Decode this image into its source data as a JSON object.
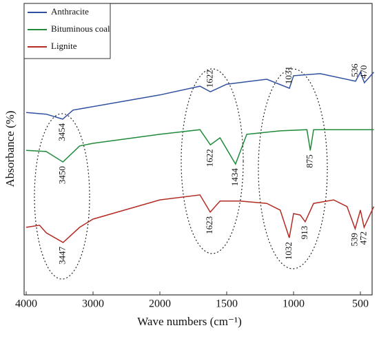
{
  "chart_data": {
    "type": "line",
    "xlabel": "Wave numbers (cm⁻¹)",
    "ylabel": "Absorbance (%)",
    "xlim": [
      4000,
      400
    ],
    "ylim": [
      0,
      100
    ],
    "xticks": [
      4000,
      3000,
      2000,
      1500,
      1000,
      500
    ],
    "legend": "upper left",
    "series": [
      {
        "name": "Anthracite",
        "color": "#2f4f9f",
        "x": [
          4000,
          3700,
          3454,
          3300,
          2000,
          1700,
          1622,
          1500,
          1200,
          1031,
          1000,
          800,
          536,
          500,
          470,
          400
        ],
        "values": [
          62.6,
          62,
          60.3,
          63.4,
          68.6,
          71.6,
          69.7,
          72.3,
          74,
          70.9,
          75.2,
          75.9,
          73.3,
          76.4,
          72.8,
          76.4
        ],
        "annotations": [
          "3454",
          "1622",
          "1031",
          "536",
          "470"
        ]
      },
      {
        "name": "Bituminous coal",
        "color": "#1f8a3a",
        "x": [
          4000,
          3700,
          3450,
          3200,
          3000,
          2000,
          1700,
          1622,
          1550,
          1434,
          1350,
          1100,
          900,
          875,
          850,
          700,
          400
        ],
        "values": [
          49.6,
          49.2,
          45.6,
          51.1,
          52,
          55.1,
          56.7,
          51.5,
          53.9,
          44.9,
          55.1,
          56.3,
          56.7,
          49.6,
          56.7,
          56.7,
          56.7
        ],
        "annotations": [
          "3450",
          "1622",
          "1434",
          "875"
        ]
      },
      {
        "name": "Lignite",
        "color": "#b22a22",
        "x": [
          4000,
          3800,
          3700,
          3447,
          3200,
          3000,
          2000,
          1700,
          1623,
          1550,
          1400,
          1200,
          1100,
          1032,
          1000,
          950,
          913,
          850,
          700,
          600,
          539,
          500,
          472,
          400
        ],
        "values": [
          23.2,
          23.9,
          21.3,
          18,
          23.2,
          26,
          32.6,
          34.3,
          28.4,
          32.2,
          32.2,
          31.4,
          29.1,
          19.6,
          27.9,
          27.4,
          25.1,
          31.4,
          32.6,
          30.3,
          22.7,
          29.1,
          23.2,
          30.3
        ],
        "annotations": [
          "3447",
          "1623",
          "1032",
          "913",
          "539",
          "472"
        ]
      }
    ]
  }
}
